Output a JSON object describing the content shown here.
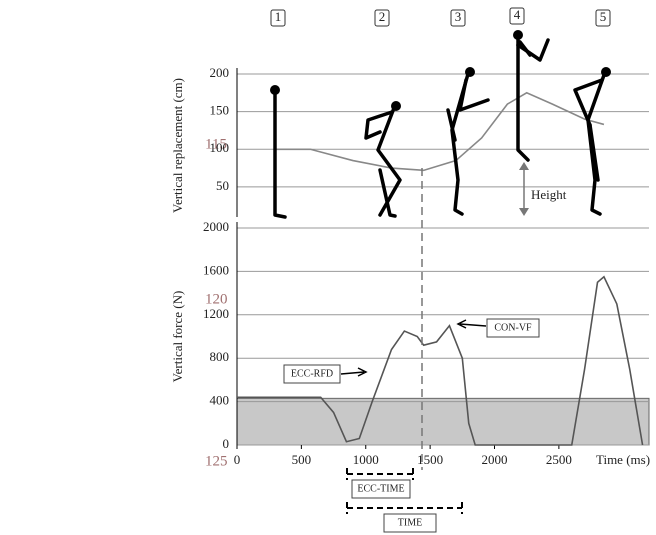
{
  "line_numbers": [
    "115",
    "120",
    "125"
  ],
  "phase_labels": [
    "1",
    "2",
    "3",
    "4",
    "5"
  ],
  "chart_data": [
    {
      "type": "line",
      "y_label": "Vertical replacement (cm)",
      "annotation": "Height",
      "x": [
        300,
        570,
        900,
        1200,
        1450,
        1700,
        1900,
        2100,
        2250,
        2450,
        2700,
        2850
      ],
      "values": [
        100,
        100,
        85,
        75,
        72,
        85,
        115,
        160,
        175,
        160,
        140,
        133
      ],
      "color": "#888888",
      "xlim": [
        0,
        3200
      ],
      "ylim": [
        10,
        200
      ],
      "yticks": [
        200,
        150,
        100,
        50
      ],
      "grid": true
    },
    {
      "type": "line",
      "y_label": "Vertical force (N)",
      "x_label": "Time (ms)",
      "annotations": [
        "CON-VF",
        "ECC-RFD",
        "ECC-TIME",
        "TIME"
      ],
      "x": [
        0,
        650,
        750,
        850,
        950,
        1050,
        1200,
        1300,
        1400,
        1450,
        1550,
        1650,
        1750,
        1800,
        1850,
        2600,
        2700,
        2800,
        2850,
        2950,
        3050,
        3150
      ],
      "values": [
        440,
        440,
        300,
        30,
        60,
        400,
        880,
        1050,
        1000,
        920,
        950,
        1100,
        800,
        200,
        0,
        0,
        700,
        1500,
        1550,
        1300,
        700,
        0
      ],
      "shaded_level": 430,
      "color": "#555555",
      "xlim": [
        0,
        3200
      ],
      "ylim": [
        0,
        2000
      ],
      "xticks": [
        0,
        500,
        1000,
        1500,
        2000,
        2500
      ],
      "yticks": [
        2000,
        1600,
        1200,
        800,
        400,
        0
      ],
      "grid": true
    }
  ]
}
